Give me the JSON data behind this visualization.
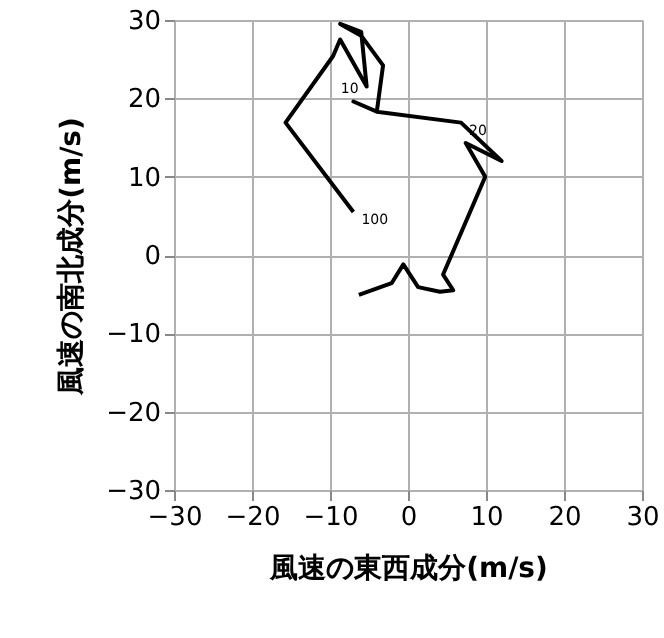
{
  "chart_data": {
    "type": "line",
    "xlabel": "風速の東西成分(m/s)",
    "ylabel": "風速の南北成分(m/s)",
    "x": [
      -6.3,
      -2.1,
      -0.6,
      1.3,
      4.1,
      5.8,
      4.5,
      9.9,
      7.4,
      12,
      6.8,
      -4,
      -7,
      -4,
      -3.2,
      -6,
      -8.7,
      -6,
      -5.3,
      -8.7,
      -9.6,
      -15.7,
      -7
    ],
    "series": [
      {
        "color": "#000000",
        "values": [
          -5.1,
          -3.6,
          -1.2,
          -4.1,
          -4.7,
          -4.5,
          -2.5,
          10.0,
          14.3,
          12,
          16.9,
          18.3,
          19.6,
          18.3,
          24.2,
          28,
          29.5,
          28.5,
          21.5,
          27.5,
          25.4,
          16.9,
          5.5
        ]
      }
    ],
    "annotations": [
      {
        "text": "10",
        "x": -5.3,
        "y": 21.5
      },
      {
        "text": "20",
        "x": 6.8,
        "y": 16.9
      },
      {
        "text": "100",
        "x": -7,
        "y": 5.5
      }
    ],
    "xlim": [
      -30,
      30
    ],
    "ylim": [
      -30,
      30
    ],
    "xticks": [
      -30,
      -20,
      -10,
      0,
      10,
      20,
      30
    ],
    "yticks": [
      -30,
      -20,
      -10,
      0,
      10,
      20,
      30
    ],
    "grid": true,
    "marker": "none",
    "line_style": "solid"
  }
}
